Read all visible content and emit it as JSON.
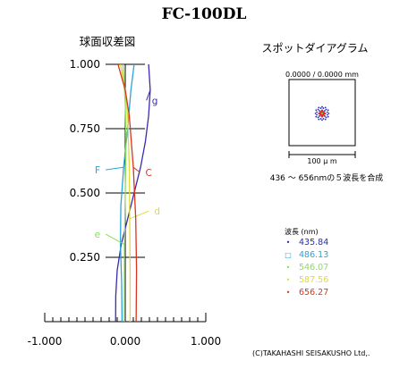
{
  "title": "FC-100DL",
  "copyright": "(C)TAKAHASHI SEISAKUSHO Ltd,.",
  "spherical_aberration": {
    "title": "球面収差図"
  },
  "spot_diagram": {
    "title": "スポットダイアグラム",
    "coords": "0.0000 / 0.0000 mm",
    "scale_label": "100 μ m",
    "note": "436 ～ 656nmの５波長を合成"
  },
  "legend": {
    "title": "波長 (nm)",
    "items": [
      {
        "marker": "•",
        "label": "435.84",
        "color": "#2a2ab8"
      },
      {
        "marker": "□",
        "label": "486.13",
        "color": "#2aa4dc"
      },
      {
        "marker": "•",
        "label": "546.07",
        "color": "#8ddc5c"
      },
      {
        "marker": "•",
        "label": "587.56",
        "color": "#e2d83a"
      },
      {
        "marker": "•",
        "label": "656.27",
        "color": "#d8341e"
      }
    ]
  },
  "chart_data": {
    "type": "line",
    "title": "球面収差図",
    "xlabel": "",
    "ylabel": "",
    "xlim": [
      -1.0,
      1.0
    ],
    "ylim": [
      0.0,
      1.0
    ],
    "x_tick_labels": [
      "-1.000",
      "0.000",
      "1.000"
    ],
    "y_tick_labels": [
      "0.250",
      "0.500",
      "0.750",
      "1.000"
    ],
    "y_ticks": [
      0.25,
      0.5,
      0.75,
      1.0
    ],
    "series": [
      {
        "name": "g",
        "color": "#3a2ab0",
        "points": [
          [
            -0.12,
            0.0
          ],
          [
            -0.118,
            0.1
          ],
          [
            -0.1,
            0.2
          ],
          [
            -0.05,
            0.3
          ],
          [
            0.03,
            0.4
          ],
          [
            0.11,
            0.5
          ],
          [
            0.19,
            0.6
          ],
          [
            0.25,
            0.7
          ],
          [
            0.29,
            0.8
          ],
          [
            0.31,
            0.9
          ],
          [
            0.29,
            1.0
          ]
        ],
        "label_value": [
          0.33,
          0.86
        ]
      },
      {
        "name": "F",
        "color": "#2aa4dc",
        "points": [
          [
            -0.04,
            0.0
          ],
          [
            -0.045,
            0.15
          ],
          [
            -0.06,
            0.3
          ],
          [
            -0.055,
            0.45
          ],
          [
            -0.02,
            0.6
          ],
          [
            0.03,
            0.75
          ],
          [
            0.07,
            0.9
          ],
          [
            0.11,
            1.0
          ]
        ],
        "label_value": [
          -0.31,
          0.59
        ]
      },
      {
        "name": "e",
        "color": "#8ddc5c",
        "points": [
          [
            -0.01,
            0.0
          ],
          [
            -0.01,
            0.15
          ],
          [
            -0.01,
            0.3
          ],
          [
            0.0,
            0.5
          ],
          [
            0.01,
            0.7
          ],
          [
            0.0,
            0.85
          ],
          [
            -0.03,
            1.0
          ]
        ],
        "label_value": [
          -0.31,
          0.34
        ]
      },
      {
        "name": "d",
        "color": "#e2d83a",
        "points": [
          [
            0.06,
            0.0
          ],
          [
            0.06,
            0.2
          ],
          [
            0.055,
            0.4
          ],
          [
            0.05,
            0.6
          ],
          [
            0.03,
            0.8
          ],
          [
            0.0,
            0.9
          ],
          [
            -0.06,
            1.0
          ]
        ],
        "label_value": [
          0.36,
          0.43
        ]
      },
      {
        "name": "C",
        "color": "#d8341e",
        "points": [
          [
            0.135,
            0.0
          ],
          [
            0.14,
            0.2
          ],
          [
            0.13,
            0.4
          ],
          [
            0.1,
            0.6
          ],
          [
            0.05,
            0.8
          ],
          [
            0.0,
            0.9
          ],
          [
            -0.09,
            1.0
          ]
        ],
        "label_value": [
          0.25,
          0.58
        ]
      }
    ],
    "spot_points": {
      "units": "μm",
      "blue": [
        [
          -5,
          0
        ],
        [
          5,
          0
        ],
        [
          0,
          -5
        ],
        [
          0,
          5
        ],
        [
          -4,
          -4
        ],
        [
          4,
          -4
        ],
        [
          -4,
          4
        ],
        [
          4,
          4
        ],
        [
          -8,
          -2
        ],
        [
          -8,
          2
        ],
        [
          8,
          -2
        ],
        [
          8,
          2
        ],
        [
          -2,
          -8
        ],
        [
          2,
          -8
        ],
        [
          -2,
          8
        ],
        [
          2,
          8
        ],
        [
          -6,
          -6
        ],
        [
          6,
          -6
        ],
        [
          -6,
          6
        ],
        [
          6,
          6
        ],
        [
          -10,
          0
        ],
        [
          10,
          0
        ],
        [
          0,
          -10
        ],
        [
          0,
          10
        ],
        [
          -9,
          -5
        ],
        [
          9,
          -5
        ],
        [
          -9,
          5
        ],
        [
          9,
          5
        ],
        [
          -5,
          -9
        ],
        [
          5,
          -9
        ],
        [
          -5,
          9
        ],
        [
          5,
          9
        ]
      ],
      "red": [
        [
          0,
          0
        ],
        [
          -1.5,
          0
        ],
        [
          1.5,
          0
        ],
        [
          0,
          -1.5
        ],
        [
          0,
          1.5
        ],
        [
          -1.5,
          -1.5
        ],
        [
          1.5,
          1.5
        ],
        [
          -1.5,
          1.5
        ],
        [
          1.5,
          -1.5
        ],
        [
          -3,
          0
        ],
        [
          3,
          0
        ],
        [
          0,
          -3
        ],
        [
          0,
          3
        ]
      ],
      "green": [
        [
          0.5,
          0.5
        ],
        [
          -0.5,
          -0.5
        ],
        [
          0.5,
          -0.5
        ],
        [
          -0.5,
          0.5
        ]
      ]
    }
  }
}
